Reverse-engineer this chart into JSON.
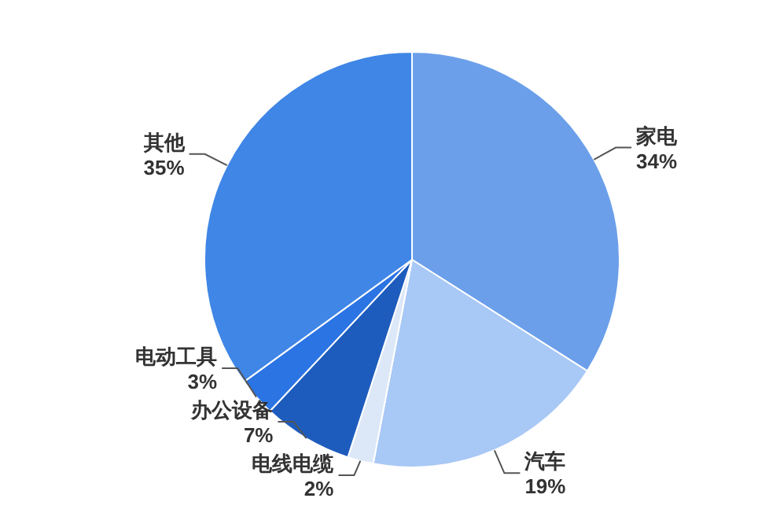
{
  "chart_data": {
    "type": "pie",
    "categories": [
      "家电",
      "汽车",
      "电线电缆",
      "办公设备",
      "电动工具",
      "其他"
    ],
    "values": [
      34,
      19,
      2,
      7,
      3,
      35
    ],
    "value_labels": [
      "34%",
      "19%",
      "2%",
      "7%",
      "3%",
      "35%"
    ],
    "colors": [
      "#6b9fea",
      "#a8c8f6",
      "#dce8f8",
      "#1d5cbd",
      "#2b74e3",
      "#3f86e6"
    ]
  }
}
